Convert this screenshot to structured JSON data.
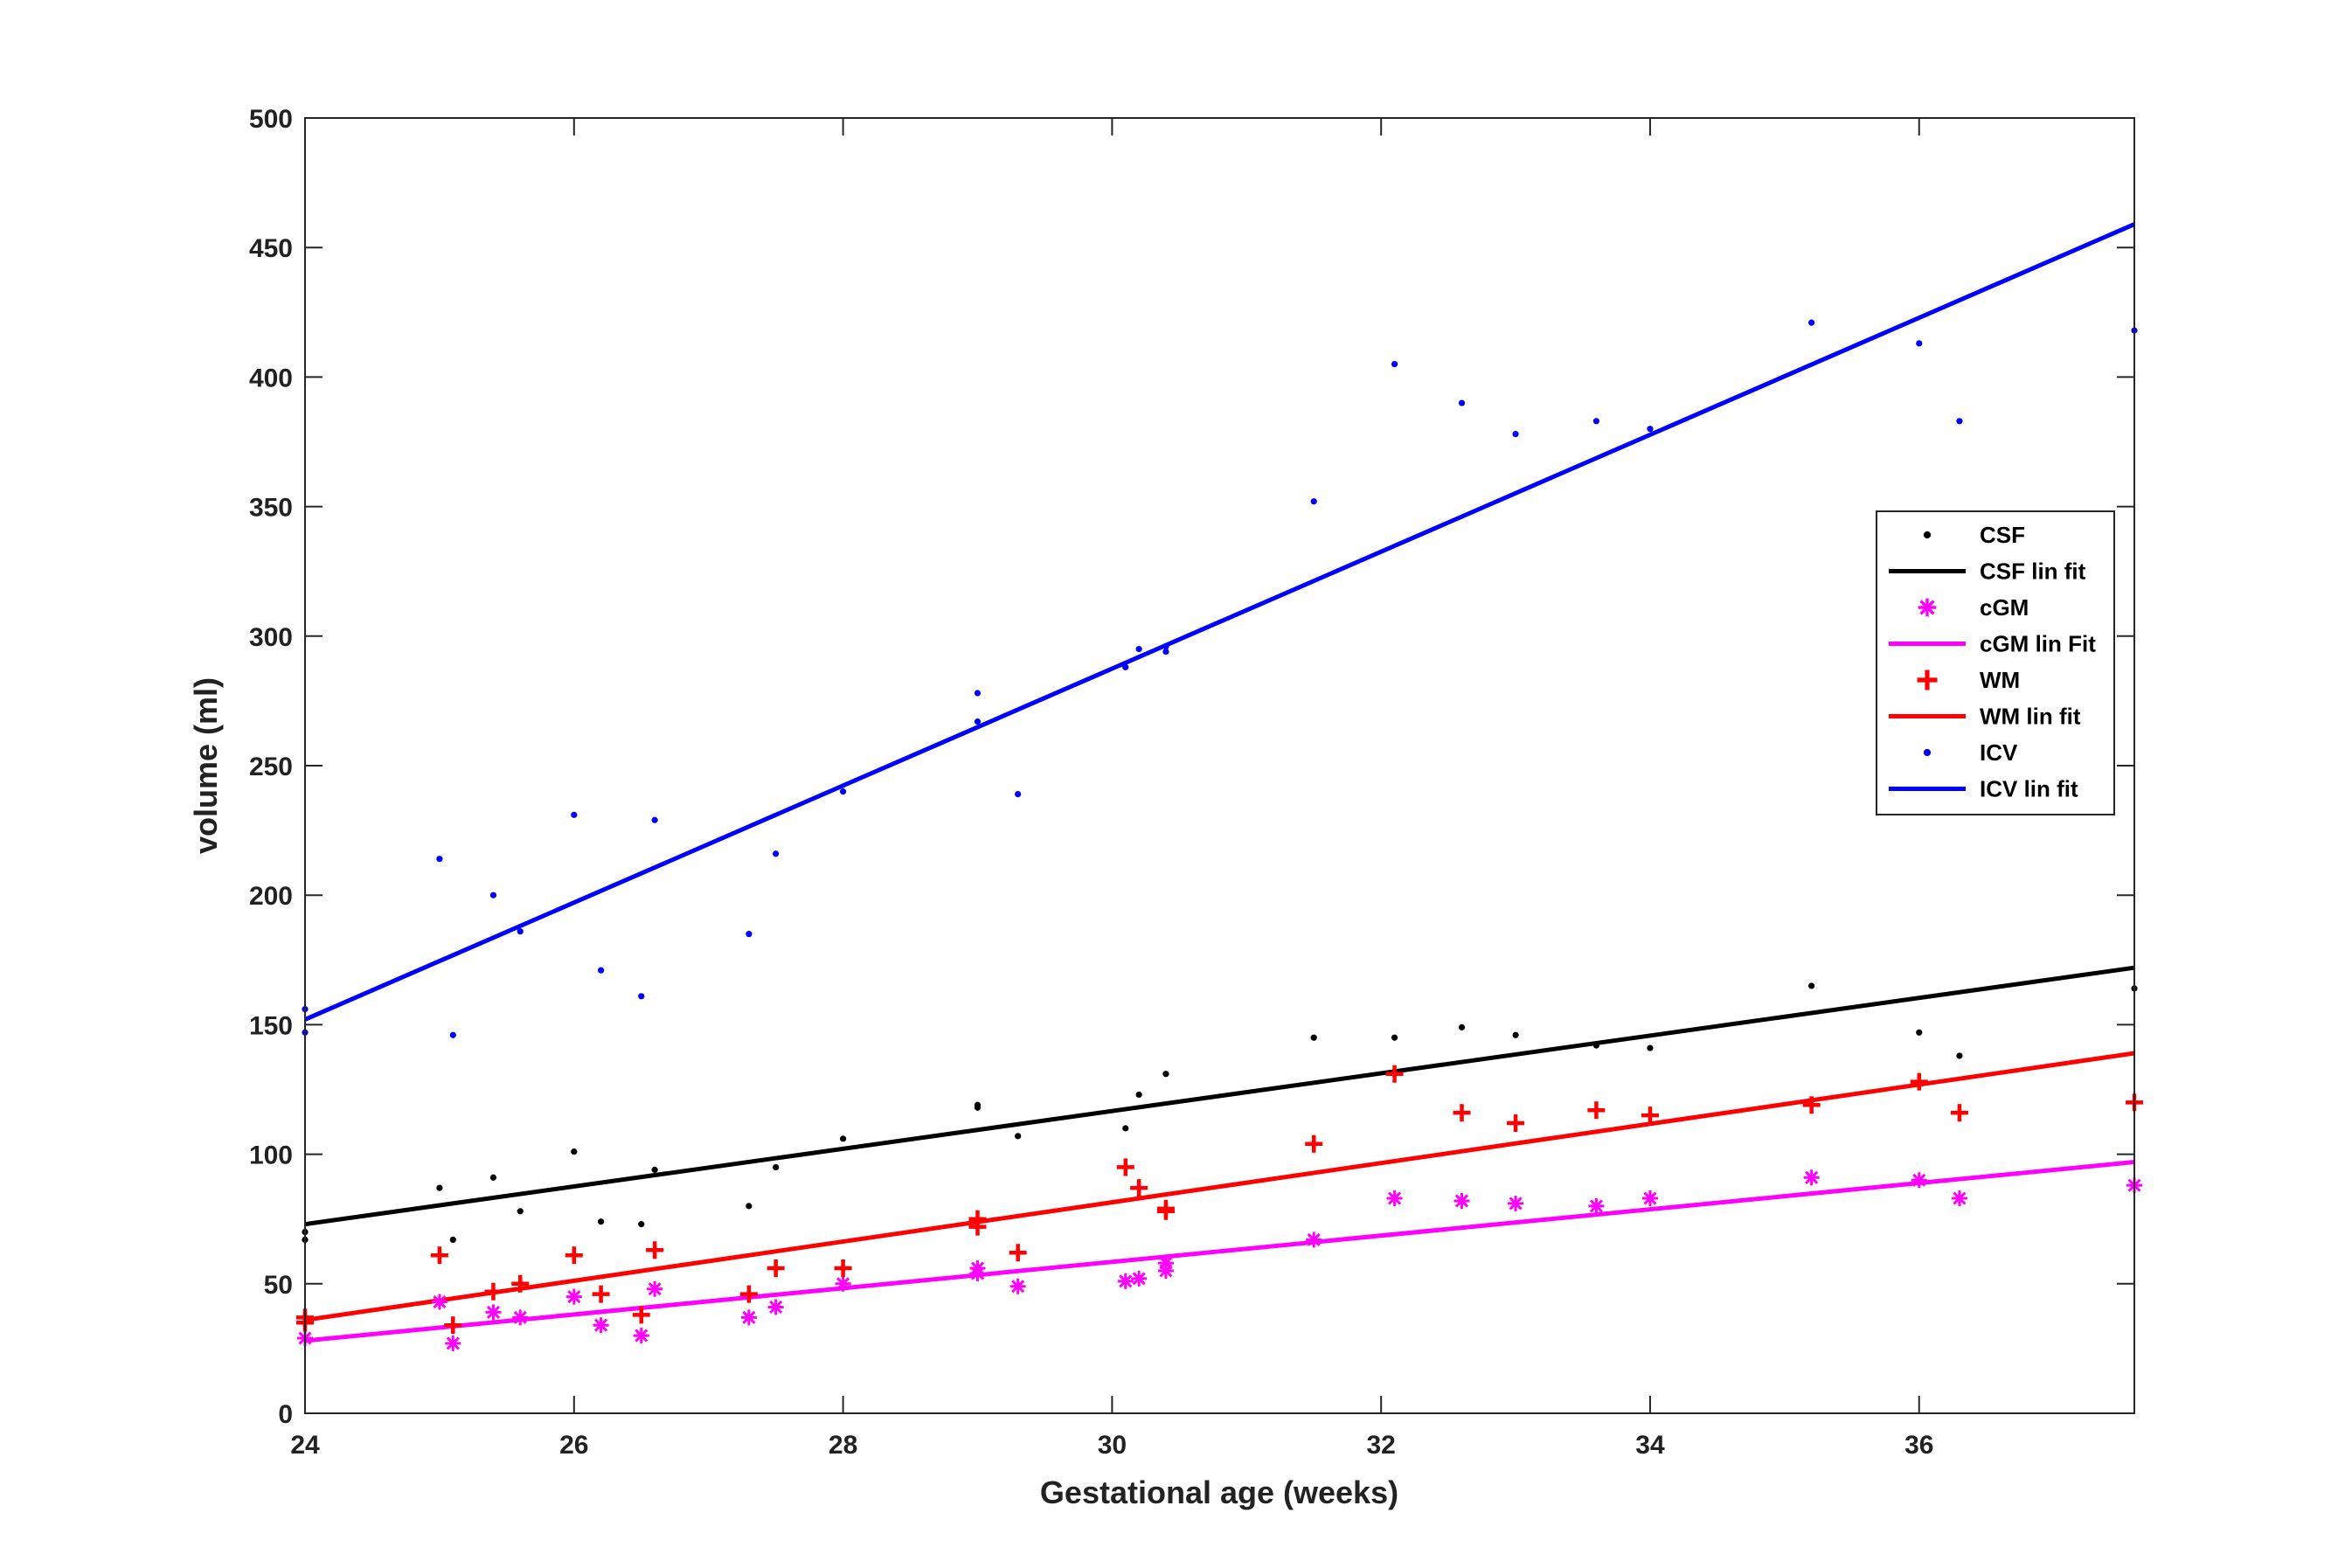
{
  "chart_data": {
    "type": "scatter",
    "title": "",
    "xlabel": "Gestational age (weeks)",
    "ylabel": "volume (ml)",
    "xlim": [
      24,
      37.6
    ],
    "ylim": [
      0,
      500
    ],
    "xticks": [
      24,
      26,
      28,
      30,
      32,
      34,
      36
    ],
    "yticks": [
      0,
      50,
      100,
      150,
      200,
      250,
      300,
      350,
      400,
      450,
      500
    ],
    "grid": false,
    "legend_position": "right",
    "series": [
      {
        "name": "CSF",
        "kind": "points",
        "marker": "dot",
        "color": "#000000",
        "points": [
          [
            24.0,
            67
          ],
          [
            24.0,
            70
          ],
          [
            25.0,
            87
          ],
          [
            25.1,
            67
          ],
          [
            25.4,
            91
          ],
          [
            25.6,
            78
          ],
          [
            26.0,
            101
          ],
          [
            26.2,
            74
          ],
          [
            26.5,
            73
          ],
          [
            26.6,
            94
          ],
          [
            27.3,
            80
          ],
          [
            27.5,
            95
          ],
          [
            28.0,
            106
          ],
          [
            29.0,
            118
          ],
          [
            29.0,
            119
          ],
          [
            29.3,
            107
          ],
          [
            30.1,
            110
          ],
          [
            30.2,
            123
          ],
          [
            30.4,
            131
          ],
          [
            31.5,
            145
          ],
          [
            32.1,
            145
          ],
          [
            32.6,
            149
          ],
          [
            33.0,
            146
          ],
          [
            33.6,
            142
          ],
          [
            34.0,
            141
          ],
          [
            35.2,
            165
          ],
          [
            36.0,
            147
          ],
          [
            36.3,
            138
          ],
          [
            37.6,
            164
          ]
        ]
      },
      {
        "name": "CSF lin fit",
        "kind": "line",
        "color": "#000000",
        "points": [
          [
            24.0,
            73
          ],
          [
            37.6,
            172
          ]
        ]
      },
      {
        "name": "cGM",
        "kind": "points",
        "marker": "asterisk",
        "color": "#ff00ff",
        "points": [
          [
            24.0,
            29
          ],
          [
            25.0,
            43
          ],
          [
            25.1,
            27
          ],
          [
            25.4,
            39
          ],
          [
            25.6,
            37
          ],
          [
            26.0,
            45
          ],
          [
            26.2,
            34
          ],
          [
            26.5,
            30
          ],
          [
            26.6,
            48
          ],
          [
            27.3,
            37
          ],
          [
            27.5,
            41
          ],
          [
            28.0,
            50
          ],
          [
            29.0,
            56
          ],
          [
            29.0,
            54
          ],
          [
            29.3,
            49
          ],
          [
            30.1,
            51
          ],
          [
            30.2,
            52
          ],
          [
            30.4,
            58
          ],
          [
            30.4,
            55
          ],
          [
            31.5,
            67
          ],
          [
            32.1,
            83
          ],
          [
            32.6,
            82
          ],
          [
            33.0,
            81
          ],
          [
            33.6,
            80
          ],
          [
            34.0,
            83
          ],
          [
            35.2,
            91
          ],
          [
            36.0,
            90
          ],
          [
            36.3,
            83
          ],
          [
            37.6,
            88
          ]
        ]
      },
      {
        "name": "cGM lin Fit",
        "kind": "line",
        "color": "#ff00ff",
        "points": [
          [
            24.0,
            28
          ],
          [
            37.6,
            97
          ]
        ]
      },
      {
        "name": "WM",
        "kind": "points",
        "marker": "plus",
        "color": "#ff0000",
        "points": [
          [
            24.0,
            35
          ],
          [
            24.0,
            37
          ],
          [
            25.0,
            61
          ],
          [
            25.1,
            34
          ],
          [
            25.4,
            47
          ],
          [
            25.6,
            50
          ],
          [
            26.0,
            61
          ],
          [
            26.2,
            46
          ],
          [
            26.5,
            38
          ],
          [
            26.6,
            63
          ],
          [
            27.3,
            46
          ],
          [
            27.5,
            56
          ],
          [
            28.0,
            56
          ],
          [
            29.0,
            72
          ],
          [
            29.0,
            75
          ],
          [
            29.3,
            62
          ],
          [
            30.1,
            95
          ],
          [
            30.2,
            87
          ],
          [
            30.4,
            78
          ],
          [
            30.4,
            79
          ],
          [
            31.5,
            104
          ],
          [
            32.1,
            131
          ],
          [
            32.6,
            116
          ],
          [
            33.0,
            112
          ],
          [
            33.6,
            117
          ],
          [
            34.0,
            115
          ],
          [
            35.2,
            119
          ],
          [
            36.0,
            128
          ],
          [
            36.3,
            116
          ],
          [
            37.6,
            120
          ]
        ]
      },
      {
        "name": "WM lin fit",
        "kind": "line",
        "color": "#ff0000",
        "points": [
          [
            24.0,
            36
          ],
          [
            37.6,
            139
          ]
        ]
      },
      {
        "name": "ICV",
        "kind": "points",
        "marker": "dot",
        "color": "#0000ff",
        "points": [
          [
            24.0,
            156
          ],
          [
            24.0,
            147
          ],
          [
            25.0,
            214
          ],
          [
            25.1,
            146
          ],
          [
            25.4,
            200
          ],
          [
            25.6,
            186
          ],
          [
            26.0,
            231
          ],
          [
            26.2,
            171
          ],
          [
            26.5,
            161
          ],
          [
            26.6,
            229
          ],
          [
            27.3,
            185
          ],
          [
            27.5,
            216
          ],
          [
            28.0,
            240
          ],
          [
            29.0,
            278
          ],
          [
            29.0,
            267
          ],
          [
            29.3,
            239
          ],
          [
            30.1,
            288
          ],
          [
            30.2,
            295
          ],
          [
            30.4,
            296
          ],
          [
            30.4,
            294
          ],
          [
            31.5,
            352
          ],
          [
            32.1,
            405
          ],
          [
            32.6,
            390
          ],
          [
            33.0,
            378
          ],
          [
            33.6,
            383
          ],
          [
            34.0,
            380
          ],
          [
            35.2,
            421
          ],
          [
            36.0,
            413
          ],
          [
            36.3,
            383
          ],
          [
            37.6,
            418
          ]
        ]
      },
      {
        "name": "ICV lin fit",
        "kind": "line",
        "color": "#0000ff",
        "points": [
          [
            24.0,
            152
          ],
          [
            37.6,
            459
          ]
        ]
      }
    ]
  }
}
